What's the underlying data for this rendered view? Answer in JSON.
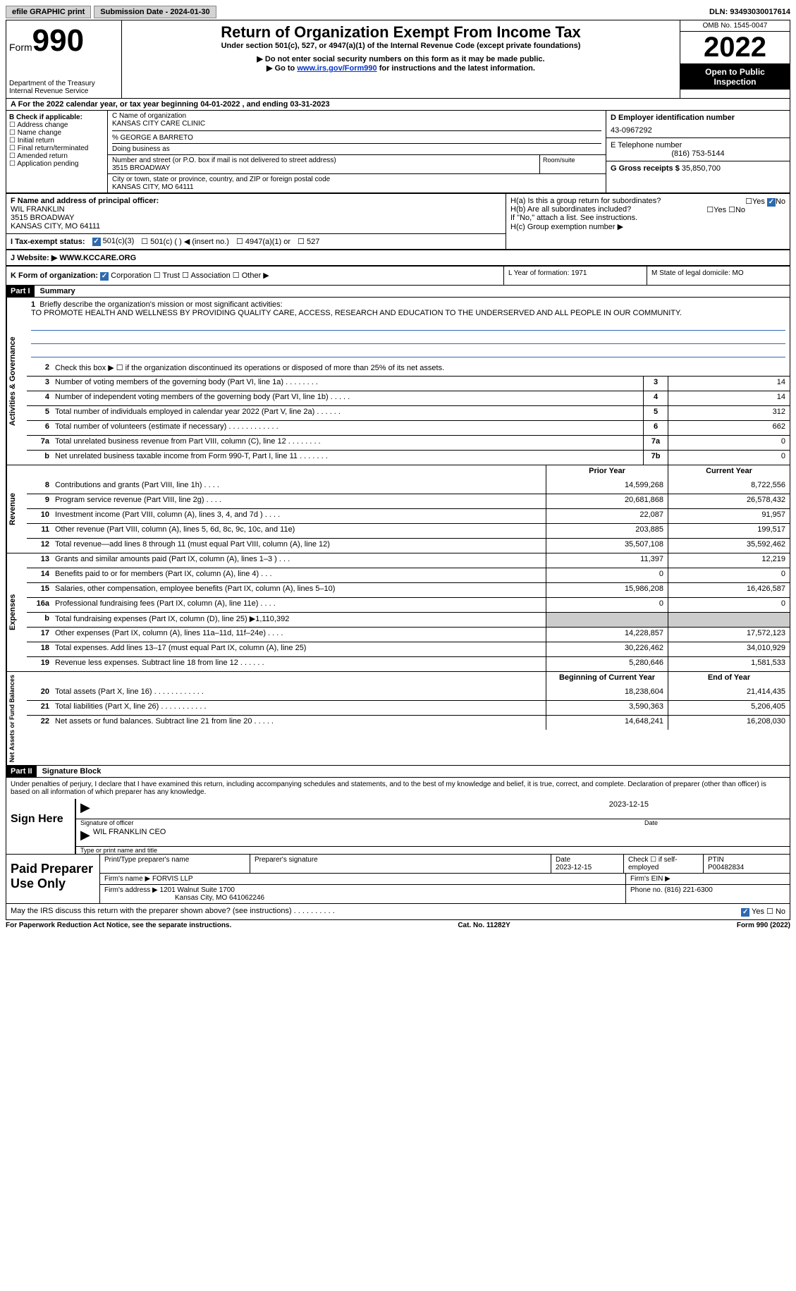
{
  "topbar": {
    "efile_label": "efile GRAPHIC print",
    "submission_label": "Submission Date - 2024-01-30",
    "dln": "DLN: 93493030017614"
  },
  "header": {
    "form_word": "Form",
    "form_number": "990",
    "dept": "Department of the Treasury\nInternal Revenue Service",
    "title": "Return of Organization Exempt From Income Tax",
    "subtitle": "Under section 501(c), 527, or 4947(a)(1) of the Internal Revenue Code (except private foundations)",
    "note1": "▶ Do not enter social security numbers on this form as it may be made public.",
    "note2_pre": "▶ Go to ",
    "note2_link": "www.irs.gov/Form990",
    "note2_post": " for instructions and the latest information.",
    "omb": "OMB No. 1545-0047",
    "year": "2022",
    "open": "Open to Public Inspection"
  },
  "fy": {
    "text": "A For the 2022 calendar year, or tax year beginning 04-01-2022   , and ending 03-31-2023"
  },
  "sectionB": {
    "title": "B Check if applicable:",
    "items": [
      "Address change",
      "Name change",
      "Initial return",
      "Final return/terminated",
      "Amended return",
      "Application pending"
    ]
  },
  "sectionC": {
    "name_label": "C Name of organization",
    "name": "KANSAS CITY CARE CLINIC",
    "care_of": "% GEORGE A BARRETO",
    "dba_label": "Doing business as",
    "addr_label": "Number and street (or P.O. box if mail is not delivered to street address)",
    "addr": "3515 BROADWAY",
    "room_label": "Room/suite",
    "city_label": "City or town, state or province, country, and ZIP or foreign postal code",
    "city": "KANSAS CITY, MO  64111"
  },
  "sectionD": {
    "ein_label": "D Employer identification number",
    "ein": "43-0967292",
    "phone_label": "E Telephone number",
    "phone": "(816) 753-5144",
    "gross_label": "G Gross receipts $",
    "gross": "35,850,700"
  },
  "sectionF": {
    "label": "F Name and address of principal officer:",
    "name": "WIL FRANKLIN",
    "addr1": "3515 BROADWAY",
    "addr2": "KANSAS CITY, MO  64111"
  },
  "sectionH": {
    "ha": "H(a)  Is this a group return for subordinates?",
    "hb": "H(b)  Are all subordinates included?",
    "hb_note": "If \"No,\" attach a list. See instructions.",
    "hc": "H(c)  Group exemption number ▶"
  },
  "taxExempt": {
    "label": "I  Tax-exempt status:",
    "opt1": "501(c)(3)",
    "opt2": "501(c) (  ) ◀ (insert no.)",
    "opt3": "4947(a)(1) or",
    "opt4": "527"
  },
  "website": {
    "label": "J  Website: ▶",
    "value": "WWW.KCCARE.ORG"
  },
  "sectionK": {
    "label": "K Form of organization:",
    "opts": [
      "Corporation",
      "Trust",
      "Association",
      "Other ▶"
    ]
  },
  "sectionL": {
    "label": "L Year of formation:",
    "value": "1971"
  },
  "sectionM": {
    "label": "M State of legal domicile:",
    "value": "MO"
  },
  "part1": {
    "header": "Part I",
    "title": "Summary"
  },
  "mission": {
    "label": "Briefly describe the organization's mission or most significant activities:",
    "text": "TO PROMOTE HEALTH AND WELLNESS BY PROVIDING QUALITY CARE, ACCESS, RESEARCH AND EDUCATION TO THE UNDERSERVED AND ALL PEOPLE IN OUR COMMUNITY."
  },
  "activities": {
    "rows": [
      {
        "n": "2",
        "d": "Check this box ▶ ☐ if the organization discontinued its operations or disposed of more than 25% of its net assets."
      },
      {
        "n": "3",
        "d": "Number of voting members of the governing body (Part VI, line 1a)  .    .    .    .    .    .    .    .",
        "box": "3",
        "v": "14"
      },
      {
        "n": "4",
        "d": "Number of independent voting members of the governing body (Part VI, line 1b)  .    .    .    .    .",
        "box": "4",
        "v": "14"
      },
      {
        "n": "5",
        "d": "Total number of individuals employed in calendar year 2022 (Part V, line 2a)  .    .    .    .    .    .",
        "box": "5",
        "v": "312"
      },
      {
        "n": "6",
        "d": "Total number of volunteers (estimate if necessary)   .    .    .    .    .    .    .    .    .    .    .    .",
        "box": "6",
        "v": "662"
      },
      {
        "n": "7a",
        "d": "Total unrelated business revenue from Part VIII, column (C), line 12   .    .    .    .    .    .    .    .",
        "box": "7a",
        "v": "0"
      },
      {
        "n": "b",
        "d": "Net unrelated business taxable income from Form 990-T, Part I, line 11   .    .    .    .    .    .    .",
        "box": "7b",
        "v": "0"
      }
    ]
  },
  "revExpHead": {
    "prior": "Prior Year",
    "current": "Current Year"
  },
  "revenue": {
    "rows": [
      {
        "n": "8",
        "d": "Contributions and grants (Part VIII, line 1h)   .    .    .    .",
        "p": "14,599,268",
        "c": "8,722,556"
      },
      {
        "n": "9",
        "d": "Program service revenue (Part VIII, line 2g)   .    .    .    .",
        "p": "20,681,868",
        "c": "26,578,432"
      },
      {
        "n": "10",
        "d": "Investment income (Part VIII, column (A), lines 3, 4, and 7d )   .    .    .    .",
        "p": "22,087",
        "c": "91,957"
      },
      {
        "n": "11",
        "d": "Other revenue (Part VIII, column (A), lines 5, 6d, 8c, 9c, 10c, and 11e)",
        "p": "203,885",
        "c": "199,517"
      },
      {
        "n": "12",
        "d": "Total revenue—add lines 8 through 11 (must equal Part VIII, column (A), line 12)",
        "p": "35,507,108",
        "c": "35,592,462"
      }
    ]
  },
  "expenses": {
    "rows": [
      {
        "n": "13",
        "d": "Grants and similar amounts paid (Part IX, column (A), lines 1–3 )   .    .    .",
        "p": "11,397",
        "c": "12,219"
      },
      {
        "n": "14",
        "d": "Benefits paid to or for members (Part IX, column (A), line 4)   .    .    .",
        "p": "0",
        "c": "0"
      },
      {
        "n": "15",
        "d": "Salaries, other compensation, employee benefits (Part IX, column (A), lines 5–10)",
        "p": "15,986,208",
        "c": "16,426,587"
      },
      {
        "n": "16a",
        "d": "Professional fundraising fees (Part IX, column (A), line 11e)   .    .    .    .",
        "p": "0",
        "c": "0"
      },
      {
        "n": "b",
        "d": "Total fundraising expenses (Part IX, column (D), line 25) ▶1,110,392",
        "shade": true
      },
      {
        "n": "17",
        "d": "Other expenses (Part IX, column (A), lines 11a–11d, 11f–24e)   .    .    .    .",
        "p": "14,228,857",
        "c": "17,572,123"
      },
      {
        "n": "18",
        "d": "Total expenses. Add lines 13–17 (must equal Part IX, column (A), line 25)",
        "p": "30,226,462",
        "c": "34,010,929"
      },
      {
        "n": "19",
        "d": "Revenue less expenses. Subtract line 18 from line 12   .    .    .    .    .    .",
        "p": "5,280,646",
        "c": "1,581,533"
      }
    ]
  },
  "netAssetsHead": {
    "begin": "Beginning of Current Year",
    "end": "End of Year"
  },
  "netAssets": {
    "rows": [
      {
        "n": "20",
        "d": "Total assets (Part X, line 16)   .    .    .    .    .    .    .    .    .    .    .    .",
        "p": "18,238,604",
        "c": "21,414,435"
      },
      {
        "n": "21",
        "d": "Total liabilities (Part X, line 26)   .    .    .    .    .    .    .    .    .    .    .",
        "p": "3,590,363",
        "c": "5,206,405"
      },
      {
        "n": "22",
        "d": "Net assets or fund balances. Subtract line 21 from line 20   .    .    .    .    .",
        "p": "14,648,241",
        "c": "16,208,030"
      }
    ]
  },
  "part2": {
    "header": "Part II",
    "title": "Signature Block"
  },
  "signText": "Under penalties of perjury, I declare that I have examined this return, including accompanying schedules and statements, and to the best of my knowledge and belief, it is true, correct, and complete. Declaration of preparer (other than officer) is based on all information of which preparer has any knowledge.",
  "sign": {
    "label": "Sign Here",
    "sig_label": "Signature of officer",
    "date": "2023-12-15",
    "date_label": "Date",
    "name": "WIL FRANKLIN  CEO",
    "name_label": "Type or print name and title"
  },
  "preparer": {
    "label": "Paid Preparer Use Only",
    "print_label": "Print/Type preparer's name",
    "sig_label": "Preparer's signature",
    "date_label": "Date",
    "date": "2023-12-15",
    "check_label": "Check ☐ if self-employed",
    "ptin_label": "PTIN",
    "ptin": "P00482834",
    "firm_name_label": "Firm's name    ▶",
    "firm_name": "FORVIS LLP",
    "firm_ein_label": "Firm's EIN ▶",
    "firm_addr_label": "Firm's address ▶",
    "firm_addr1": "1201 Walnut Suite 1700",
    "firm_addr2": "Kansas City, MO  641062246",
    "phone_label": "Phone no.",
    "phone": "(816) 221-6300"
  },
  "discuss": {
    "text": "May the IRS discuss this return with the preparer shown above? (see instructions)   .    .    .    .    .    .    .    .    .    .",
    "yes": "Yes",
    "no": "No"
  },
  "footer": {
    "left": "For Paperwork Reduction Act Notice, see the separate instructions.",
    "mid": "Cat. No. 11282Y",
    "right": "Form 990 (2022)"
  },
  "sideLabels": {
    "activities": "Activities & Governance",
    "revenue": "Revenue",
    "expenses": "Expenses",
    "netassets": "Net Assets or Fund Balances"
  }
}
